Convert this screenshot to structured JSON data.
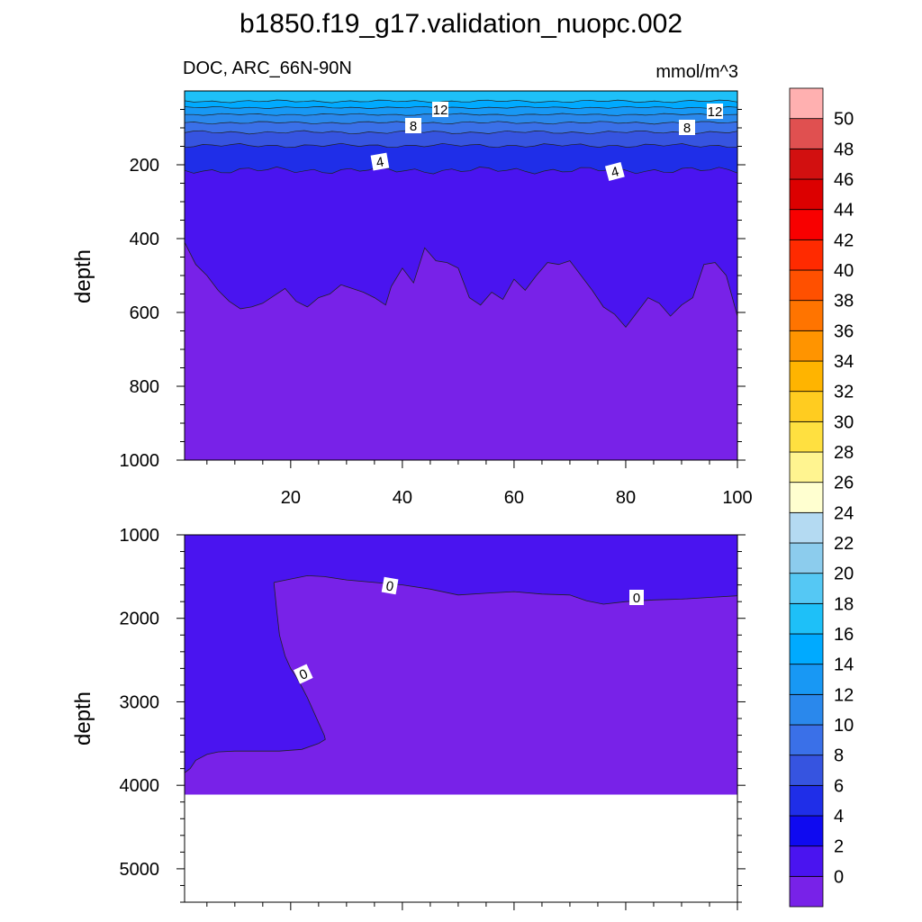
{
  "chart_data": {
    "type": "heatmap",
    "title": "b1850.f19_g17.validation_nuopc.002",
    "colorbar": {
      "levels": [
        "0",
        "2",
        "4",
        "6",
        "8",
        "10",
        "12",
        "14",
        "16",
        "18",
        "20",
        "22",
        "24",
        "26",
        "28",
        "30",
        "32",
        "34",
        "36",
        "38",
        "40",
        "42",
        "44",
        "46",
        "48",
        "50"
      ],
      "colors": [
        "#7822e8",
        "#4a14f0",
        "#0f0af0",
        "#1f2ee8",
        "#3654e0",
        "#3a70e8",
        "#2a88ec",
        "#1898f4",
        "#00aaff",
        "#1ec0f8",
        "#55c8f4",
        "#8ccced",
        "#b4daf2",
        "#ffffd0",
        "#fff490",
        "#ffe040",
        "#ffcc20",
        "#ffb400",
        "#ff9400",
        "#ff7400",
        "#ff5000",
        "#ff2a00",
        "#f80000",
        "#dc0000",
        "#d21010",
        "#e05050",
        "#ffb0b0"
      ]
    },
    "panels": [
      {
        "name": "upper",
        "subtitle_left": "DOC, ARC_66N-90N",
        "subtitle_right": "mmol/m^3",
        "ylabel": "depth",
        "xlim": [
          1,
          100
        ],
        "ylim": [
          0,
          1000
        ],
        "yticks": [
          "200",
          "400",
          "600",
          "800",
          "1000"
        ],
        "xticks": [
          "20",
          "40",
          "60",
          "80",
          "100"
        ],
        "contour_labels": [
          "12",
          "12",
          "8",
          "8",
          "4",
          "4"
        ],
        "contour_levels": [
          4,
          6,
          8,
          10,
          12,
          14,
          16
        ],
        "contour_depth_base": [
          215,
          148,
          112,
          86,
          64,
          45,
          28
        ],
        "contour_depth_jitter": [
          10,
          6,
          5,
          4,
          3,
          3,
          4
        ],
        "band_colors": [
          "#1f2ee8",
          "#3654e0",
          "#3a70e8",
          "#2a88ec",
          "#1898f4",
          "#00aaff",
          "#1ec0f8"
        ],
        "interior_level": 2,
        "interior_color": "#0f0af0",
        "deep_level": 0,
        "deep_color": "#4a14f0",
        "boundary_2": {
          "x": [
            1,
            3,
            5,
            7,
            9,
            11,
            13,
            15,
            17,
            19,
            21,
            23,
            25,
            27,
            29,
            31,
            33,
            35,
            37,
            38,
            40,
            42,
            44,
            46,
            48,
            50,
            52,
            54,
            56,
            58,
            60,
            62,
            64,
            66,
            68,
            70,
            72,
            74,
            76,
            78,
            80,
            82,
            84,
            86,
            88,
            90,
            92,
            94,
            96,
            98,
            100
          ],
          "depth": [
            410,
            470,
            500,
            540,
            570,
            590,
            585,
            575,
            555,
            535,
            570,
            585,
            560,
            550,
            525,
            535,
            545,
            560,
            580,
            530,
            480,
            520,
            425,
            460,
            465,
            480,
            560,
            580,
            545,
            565,
            510,
            540,
            500,
            465,
            470,
            460,
            500,
            540,
            585,
            605,
            640,
            600,
            560,
            575,
            610,
            580,
            560,
            470,
            465,
            500,
            610
          ]
        },
        "fill_0": "#7822e8"
      },
      {
        "name": "lower",
        "ylabel": "depth",
        "xlim": [
          1,
          100
        ],
        "ylim": [
          1000,
          5400
        ],
        "yticks": [
          "1000",
          "2000",
          "3000",
          "4000",
          "5000"
        ],
        "bottom_depth": 4110,
        "contour_labels": [
          "0",
          "0",
          "0"
        ],
        "boundary_0_top": {
          "x": [
            17,
            20,
            23,
            26,
            30,
            35,
            40,
            45,
            50,
            55,
            60,
            65,
            70,
            73,
            76,
            80,
            85,
            90,
            95,
            100
          ],
          "depth": [
            1570,
            1530,
            1490,
            1500,
            1540,
            1570,
            1600,
            1650,
            1720,
            1700,
            1680,
            1710,
            1720,
            1790,
            1830,
            1800,
            1780,
            1770,
            1750,
            1730
          ]
        },
        "boundary_0_left": {
          "x": [
            17,
            17.5,
            18,
            19,
            20,
            21,
            22,
            23,
            24,
            25,
            26,
            26.2,
            25
          ],
          "depth": [
            1570,
            1900,
            2200,
            2450,
            2600,
            2700,
            2820,
            2950,
            3100,
            3250,
            3400,
            3450,
            3500
          ]
        },
        "boundary_0_bottom": {
          "x": [
            25,
            22,
            18,
            14,
            10,
            7,
            5,
            3,
            2,
            1
          ],
          "depth": [
            3500,
            3570,
            3590,
            3590,
            3590,
            3600,
            3630,
            3700,
            3800,
            3850
          ]
        },
        "fill_below_0": "#4a14f0",
        "fill_above_0": "#7822e8"
      }
    ]
  }
}
